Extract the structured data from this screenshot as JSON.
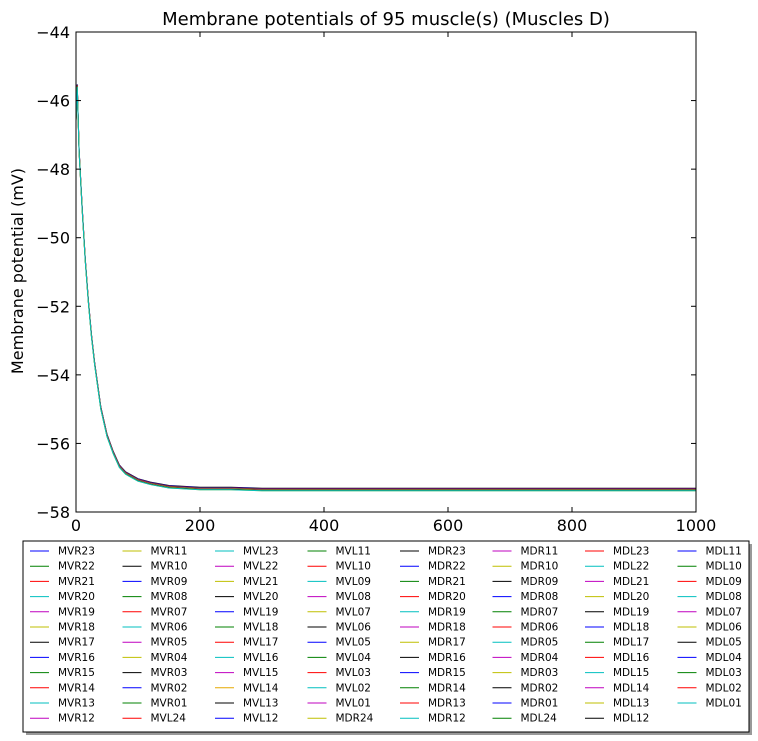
{
  "chart_data": {
    "type": "line",
    "title": "Membrane potentials of 95 muscle(s) (Muscles D)",
    "xlabel": "",
    "ylabel": "Membrane potential (mV)",
    "xlim": [
      0,
      1000
    ],
    "ylim": [
      -58,
      -44
    ],
    "xticks": [
      "0",
      "200",
      "400",
      "600",
      "800",
      "1000"
    ],
    "yticks": [
      "−44",
      "−46",
      "−48",
      "−50",
      "−52",
      "−54",
      "−56",
      "−58"
    ],
    "grid": false,
    "legend_placement": "below",
    "curve": {
      "x": [
        0,
        2,
        5,
        10,
        15,
        20,
        25,
        30,
        40,
        50,
        60,
        70,
        80,
        100,
        120,
        150,
        200,
        250,
        300,
        400,
        600,
        800,
        1000
      ],
      "y": [
        -46.6,
        -45.6,
        -47.5,
        -49.2,
        -50.7,
        -51.9,
        -52.9,
        -53.7,
        -55.0,
        -55.8,
        -56.3,
        -56.7,
        -56.9,
        -57.1,
        -57.2,
        -57.3,
        -57.35,
        -57.35,
        -57.38,
        -57.38,
        -57.38,
        -57.38,
        -57.38
      ]
    },
    "series": [
      {
        "name": "MVR23",
        "color": "#0000ff"
      },
      {
        "name": "MVR22",
        "color": "#008000"
      },
      {
        "name": "MVR21",
        "color": "#ff0000"
      },
      {
        "name": "MVR20",
        "color": "#00bfbf"
      },
      {
        "name": "MVR19",
        "color": "#bf00bf"
      },
      {
        "name": "MVR18",
        "color": "#bfbf00"
      },
      {
        "name": "MVR17",
        "color": "#000000"
      },
      {
        "name": "MVR16",
        "color": "#0000ff"
      },
      {
        "name": "MVR15",
        "color": "#008000"
      },
      {
        "name": "MVR14",
        "color": "#ff0000"
      },
      {
        "name": "MVR13",
        "color": "#00bfbf"
      },
      {
        "name": "MVR12",
        "color": "#bf00bf"
      },
      {
        "name": "MVR11",
        "color": "#bfbf00"
      },
      {
        "name": "MVR10",
        "color": "#000000"
      },
      {
        "name": "MVR09",
        "color": "#0000ff"
      },
      {
        "name": "MVR08",
        "color": "#008000"
      },
      {
        "name": "MVR07",
        "color": "#ff0000"
      },
      {
        "name": "MVR06",
        "color": "#00bfbf"
      },
      {
        "name": "MVR05",
        "color": "#bf00bf"
      },
      {
        "name": "MVR04",
        "color": "#bfbf00"
      },
      {
        "name": "MVR03",
        "color": "#000000"
      },
      {
        "name": "MVR02",
        "color": "#0000ff"
      },
      {
        "name": "MVR01",
        "color": "#008000"
      },
      {
        "name": "MVL24",
        "color": "#ff0000"
      },
      {
        "name": "MVL23",
        "color": "#00bfbf"
      },
      {
        "name": "MVL22",
        "color": "#bf00bf"
      },
      {
        "name": "MVL21",
        "color": "#bfbf00"
      },
      {
        "name": "MVL20",
        "color": "#000000"
      },
      {
        "name": "MVL19",
        "color": "#0000ff"
      },
      {
        "name": "MVL18",
        "color": "#008000"
      },
      {
        "name": "MVL17",
        "color": "#ff0000"
      },
      {
        "name": "MVL16",
        "color": "#00bfbf"
      },
      {
        "name": "MVL15",
        "color": "#bf00bf"
      },
      {
        "name": "MVL14",
        "color": "#e6a800"
      },
      {
        "name": "MVL13",
        "color": "#000000"
      },
      {
        "name": "MVL12",
        "color": "#0000ff"
      },
      {
        "name": "MVL11",
        "color": "#008000"
      },
      {
        "name": "MVL10",
        "color": "#ff0000"
      },
      {
        "name": "MVL09",
        "color": "#00bfbf"
      },
      {
        "name": "MVL08",
        "color": "#bf00bf"
      },
      {
        "name": "MVL07",
        "color": "#bfbf00"
      },
      {
        "name": "MVL06",
        "color": "#000000"
      },
      {
        "name": "MVL05",
        "color": "#0000ff"
      },
      {
        "name": "MVL04",
        "color": "#008000"
      },
      {
        "name": "MVL03",
        "color": "#ff0000"
      },
      {
        "name": "MVL02",
        "color": "#00bfbf"
      },
      {
        "name": "MVL01",
        "color": "#bf00bf"
      },
      {
        "name": "MDR24",
        "color": "#bfbf00"
      },
      {
        "name": "MDR23",
        "color": "#000000"
      },
      {
        "name": "MDR22",
        "color": "#0000ff"
      },
      {
        "name": "MDR21",
        "color": "#008000"
      },
      {
        "name": "MDR20",
        "color": "#ff0000"
      },
      {
        "name": "MDR19",
        "color": "#00bfbf"
      },
      {
        "name": "MDR18",
        "color": "#bf00bf"
      },
      {
        "name": "MDR17",
        "color": "#bfbf00"
      },
      {
        "name": "MDR16",
        "color": "#000000"
      },
      {
        "name": "MDR15",
        "color": "#0000ff"
      },
      {
        "name": "MDR14",
        "color": "#008000"
      },
      {
        "name": "MDR13",
        "color": "#ff0000"
      },
      {
        "name": "MDR12",
        "color": "#00bfbf"
      },
      {
        "name": "MDR11",
        "color": "#bf00bf"
      },
      {
        "name": "MDR10",
        "color": "#bfbf00"
      },
      {
        "name": "MDR09",
        "color": "#000000"
      },
      {
        "name": "MDR08",
        "color": "#0000ff"
      },
      {
        "name": "MDR07",
        "color": "#008000"
      },
      {
        "name": "MDR06",
        "color": "#ff0000"
      },
      {
        "name": "MDR05",
        "color": "#00bfbf"
      },
      {
        "name": "MDR04",
        "color": "#bf00bf"
      },
      {
        "name": "MDR03",
        "color": "#bfbf00"
      },
      {
        "name": "MDR02",
        "color": "#000000"
      },
      {
        "name": "MDR01",
        "color": "#0000ff"
      },
      {
        "name": "MDL24",
        "color": "#008000"
      },
      {
        "name": "MDL23",
        "color": "#ff0000"
      },
      {
        "name": "MDL22",
        "color": "#00bfbf"
      },
      {
        "name": "MDL21",
        "color": "#bf00bf"
      },
      {
        "name": "MDL20",
        "color": "#bfbf00"
      },
      {
        "name": "MDL19",
        "color": "#000000"
      },
      {
        "name": "MDL18",
        "color": "#0000ff"
      },
      {
        "name": "MDL17",
        "color": "#008000"
      },
      {
        "name": "MDL16",
        "color": "#ff0000"
      },
      {
        "name": "MDL15",
        "color": "#00bfbf"
      },
      {
        "name": "MDL14",
        "color": "#bf00bf"
      },
      {
        "name": "MDL13",
        "color": "#bfbf00"
      },
      {
        "name": "MDL12",
        "color": "#000000"
      },
      {
        "name": "MDL11",
        "color": "#0000ff"
      },
      {
        "name": "MDL10",
        "color": "#008000"
      },
      {
        "name": "MDL09",
        "color": "#ff0000"
      },
      {
        "name": "MDL08",
        "color": "#00bfbf"
      },
      {
        "name": "MDL07",
        "color": "#bf00bf"
      },
      {
        "name": "MDL06",
        "color": "#bfbf00"
      },
      {
        "name": "MDL05",
        "color": "#000000"
      },
      {
        "name": "MDL04",
        "color": "#0000ff"
      },
      {
        "name": "MDL03",
        "color": "#008000"
      },
      {
        "name": "MDL02",
        "color": "#ff0000"
      },
      {
        "name": "MDL01",
        "color": "#00bfbf"
      }
    ]
  }
}
